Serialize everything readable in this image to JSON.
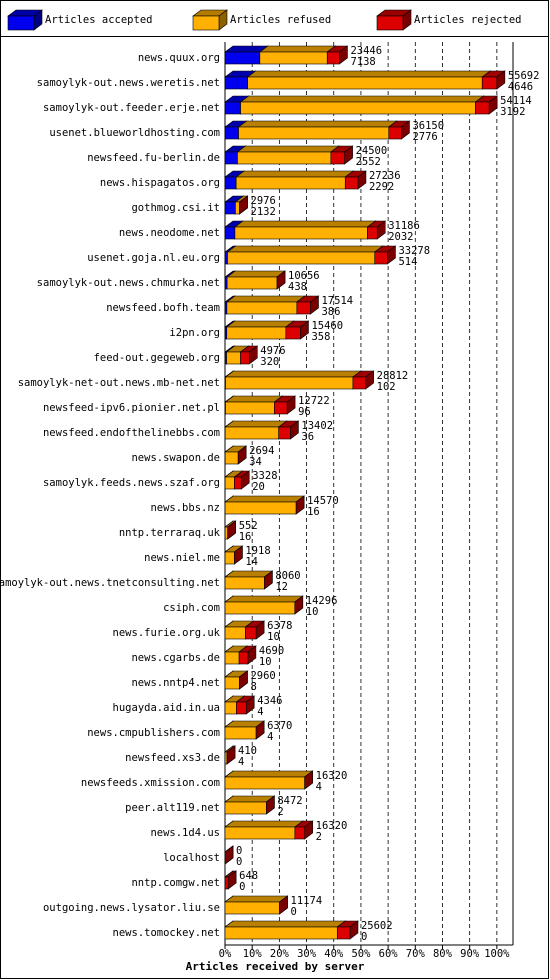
{
  "chart_data": {
    "type": "bar3d-stacked-horizontal",
    "x_label": "Articles received by server",
    "categories": [
      "news.quux.org",
      "samoylyk-out.news.weretis.net",
      "samoylyk-out.feeder.erje.net",
      "usenet.blueworldhosting.com",
      "newsfeed.fu-berlin.de",
      "news.hispagatos.org",
      "gothmog.csi.it",
      "news.neodome.net",
      "usenet.goja.nl.eu.org",
      "samoylyk-out.news.chmurka.net",
      "newsfeed.bofh.team",
      "i2pn.org",
      "feed-out.gegeweb.org",
      "samoylyk-net-out.news.mb-net.net",
      "newsfeed-ipv6.pionier.net.pl",
      "newsfeed.endofthelinebbs.com",
      "news.swapon.de",
      "samoylyk.feeds.news.szaf.org",
      "news.bbs.nz",
      "nntp.terraraq.uk",
      "news.niel.me",
      "samoylyk-out.news.tnetconsulting.net",
      "csiph.com",
      "news.furie.org.uk",
      "news.cgarbs.de",
      "news.nntp4.net",
      "hugayda.aid.in.ua",
      "news.cmpublishers.com",
      "newsfeed.xs3.de",
      "newsfeeds.xmission.com",
      "peer.alt119.net",
      "news.1d4.us",
      "localhost",
      "nntp.comgw.net",
      "outgoing.news.lysator.liu.se",
      "news.tomockey.net"
    ],
    "totals": [
      23446,
      55692,
      54114,
      36150,
      24500,
      27236,
      2976,
      31186,
      33278,
      10656,
      17514,
      15460,
      4976,
      28812,
      12722,
      13402,
      2694,
      3328,
      14570,
      552,
      1918,
      8060,
      14296,
      6378,
      4690,
      2960,
      4346,
      6370,
      410,
      16320,
      8472,
      16320,
      0,
      648,
      11174,
      25602
    ],
    "series": [
      {
        "name": "Articles accepted",
        "color": "#0000ee",
        "values": [
          7138,
          4646,
          3192,
          2776,
          2552,
          2292,
          2132,
          2032,
          514,
          438,
          386,
          358,
          320,
          102,
          96,
          36,
          34,
          20,
          16,
          16,
          14,
          12,
          10,
          10,
          10,
          8,
          4,
          4,
          4,
          4,
          2,
          2,
          0,
          0,
          0,
          0
        ]
      },
      {
        "name": "Articles refused",
        "color": "#ffb000",
        "values": [
          13808,
          48046,
          48122,
          30774,
          19148,
          22344,
          844,
          27154,
          30164,
          10218,
          14328,
          12102,
          2856,
          26110,
          10026,
          10966,
          2660,
          1908,
          14554,
          536,
          1904,
          8048,
          14286,
          4168,
          2880,
          2952,
          2342,
          6366,
          406,
          16316,
          8470,
          14318,
          0,
          0,
          11174,
          23002
        ]
      },
      {
        "name": "Articles rejected",
        "color": "#dd0000",
        "values": [
          2500,
          3000,
          2800,
          2600,
          2800,
          2600,
          0,
          2000,
          2600,
          0,
          2800,
          3000,
          1800,
          2600,
          2600,
          2400,
          0,
          1400,
          0,
          0,
          0,
          0,
          0,
          2200,
          1800,
          0,
          2000,
          0,
          0,
          0,
          0,
          2000,
          0,
          648,
          0,
          2600
        ]
      }
    ],
    "xlim": [
      0,
      59000
    ],
    "xticks": [
      {
        "value": 0,
        "label": "0%"
      },
      {
        "value": 5569.2,
        "label": "10%"
      },
      {
        "value": 11138.4,
        "label": "20%"
      },
      {
        "value": 16707.6,
        "label": "30%"
      },
      {
        "value": 22276.8,
        "label": "40%"
      },
      {
        "value": 27846,
        "label": "50%"
      },
      {
        "value": 33415.2,
        "label": "60%"
      },
      {
        "value": 38984.4,
        "label": "70%"
      },
      {
        "value": 44553.6,
        "label": "80%"
      },
      {
        "value": 50122.8,
        "label": "90%"
      },
      {
        "value": 55692,
        "label": "100%"
      }
    ],
    "grid": true
  }
}
